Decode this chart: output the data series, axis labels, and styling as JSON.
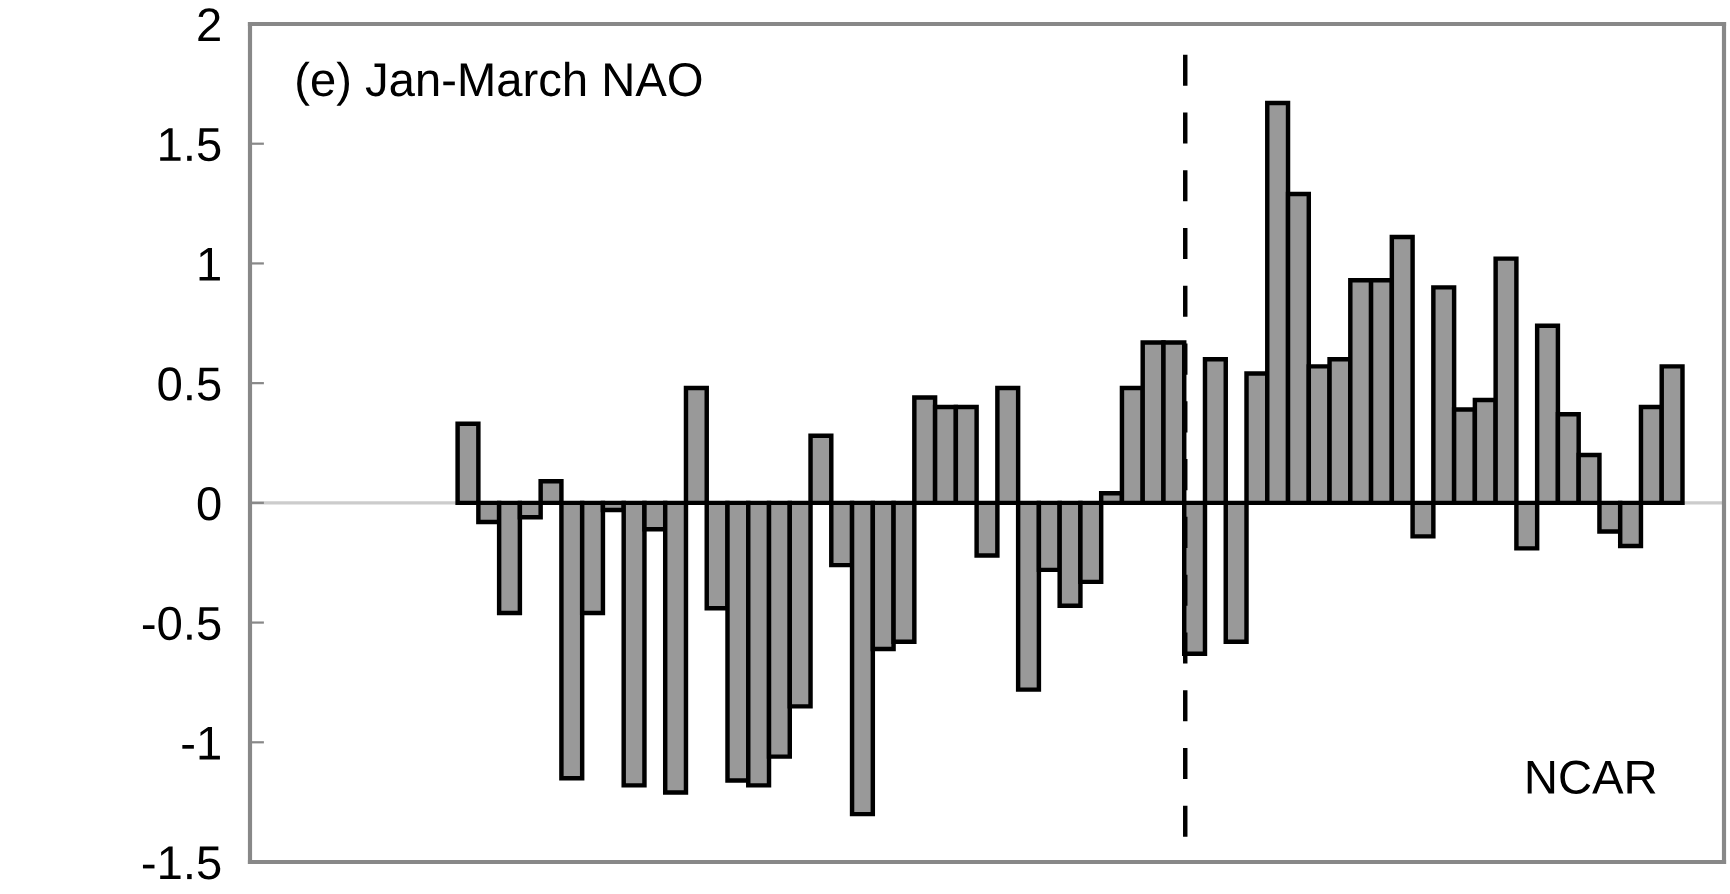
{
  "chart_data": {
    "type": "bar",
    "categories": [
      null,
      null,
      null,
      null,
      null,
      null,
      null,
      null,
      null,
      null,
      null,
      null,
      null,
      null,
      null,
      null,
      null,
      null,
      null,
      null,
      null,
      null,
      null,
      null,
      null,
      null,
      null,
      null,
      null,
      null,
      null,
      null,
      null,
      null,
      null,
      null,
      null,
      null,
      null,
      null,
      null,
      null,
      null,
      null,
      null,
      null,
      null,
      null,
      null,
      null,
      null,
      null,
      null,
      null,
      null,
      null,
      null,
      null,
      null,
      null,
      null,
      null,
      null,
      null,
      null,
      null,
      null,
      null,
      null,
      null,
      null
    ],
    "values": [
      null,
      null,
      null,
      null,
      null,
      null,
      null,
      null,
      null,
      null,
      0.33,
      -0.08,
      -0.46,
      -0.06,
      0.09,
      -1.15,
      -0.46,
      -0.03,
      -1.18,
      -0.11,
      -1.21,
      0.48,
      -0.44,
      -1.16,
      -1.18,
      -1.06,
      -0.85,
      0.28,
      -0.26,
      -1.3,
      -0.61,
      -0.58,
      0.44,
      0.4,
      0.4,
      -0.22,
      0.48,
      -0.78,
      -0.28,
      -0.43,
      -0.33,
      0.04,
      0.48,
      0.67,
      0.67,
      -0.63,
      0.6,
      -0.58,
      0.54,
      1.67,
      1.29,
      0.57,
      0.6,
      0.93,
      0.93,
      1.11,
      -0.14,
      0.9,
      0.39,
      0.43,
      1.02,
      -0.19,
      0.74,
      0.37,
      0.2,
      -0.12,
      -0.18,
      0.4,
      0.57,
      null,
      null
    ],
    "color": "#999999",
    "ylim": [
      -1.5,
      2
    ],
    "yticks": [
      2,
      1.5,
      1,
      0.5,
      0,
      -0.5,
      -1,
      -1.5
    ],
    "tick_labels": "y",
    "grid": false,
    "legend": false,
    "ref_lines": [
      {
        "axis": "y",
        "value": 0,
        "color": "#cccccc",
        "line_style": "solid"
      }
    ],
    "annotations": [
      "(e) Jan-March NAO",
      "NCAR"
    ]
  }
}
